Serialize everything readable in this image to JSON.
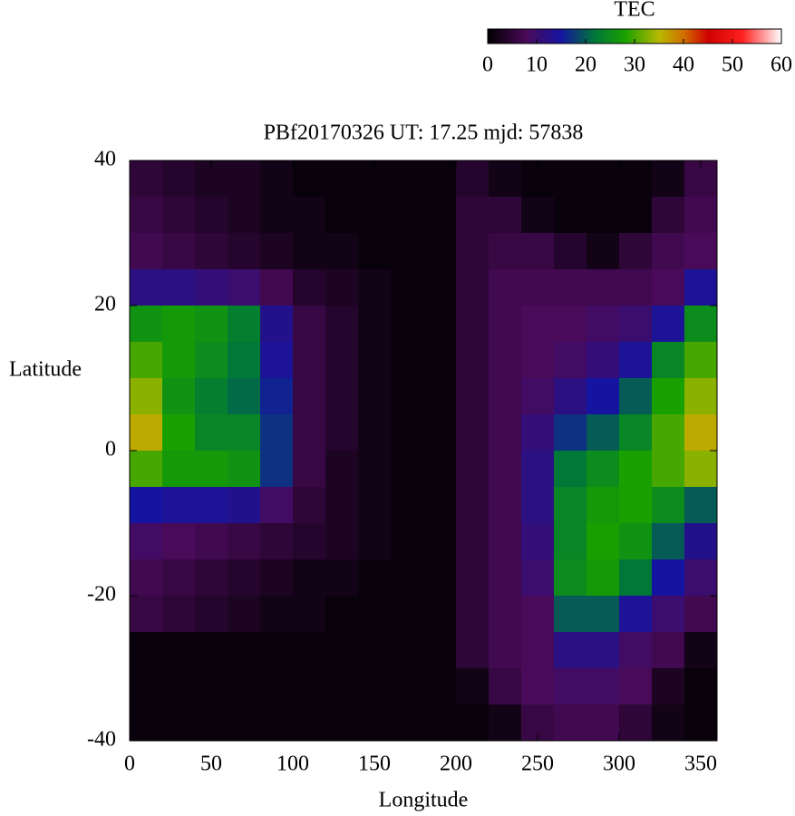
{
  "chart_data": {
    "type": "heatmap",
    "title": "PBf20170326  UT: 17.25  mjd: 57838",
    "x_label": "Longitude",
    "y_label": "Latitude",
    "x": [
      10,
      30,
      50,
      70,
      90,
      110,
      130,
      150,
      170,
      190,
      210,
      230,
      250,
      270,
      290,
      310,
      330,
      350
    ],
    "y": [
      37.5,
      32.5,
      27.5,
      22.5,
      17.5,
      12.5,
      7.5,
      2.5,
      -2.5,
      -7.5,
      -12.5,
      -17.5,
      -22.5,
      -27.5,
      -32.5,
      -37.5
    ],
    "values": [
      [
        5,
        4,
        3,
        3,
        2,
        1,
        1,
        1,
        1,
        1,
        4,
        2,
        1,
        1,
        1,
        1,
        2,
        6
      ],
      [
        6,
        5,
        4,
        3,
        2,
        2,
        1,
        1,
        1,
        1,
        5,
        5,
        2,
        1,
        1,
        1,
        5,
        7
      ],
      [
        7,
        6,
        5,
        4,
        3,
        2,
        2,
        1,
        1,
        1,
        5,
        6,
        6,
        4,
        2,
        5,
        7,
        8
      ],
      [
        12,
        12,
        11,
        10,
        7,
        4,
        3,
        2,
        1,
        1,
        5,
        7,
        7,
        7,
        7,
        7,
        8,
        14
      ],
      [
        26,
        27,
        26,
        23,
        13,
        6,
        4,
        2,
        1,
        1,
        5,
        7,
        8,
        8,
        9,
        10,
        14,
        25
      ],
      [
        30,
        27,
        25,
        22,
        14,
        6,
        4,
        2,
        1,
        1,
        5,
        7,
        8,
        9,
        11,
        14,
        24,
        30
      ],
      [
        33,
        26,
        23,
        21,
        16,
        6,
        4,
        2,
        1,
        1,
        5,
        7,
        9,
        12,
        15,
        20,
        28,
        33
      ],
      [
        36,
        28,
        24,
        24,
        17,
        6,
        4,
        2,
        1,
        1,
        5,
        7,
        11,
        17,
        20,
        24,
        30,
        36
      ],
      [
        30,
        27,
        27,
        26,
        17,
        6,
        3,
        2,
        1,
        1,
        5,
        7,
        12,
        22,
        25,
        28,
        30,
        33
      ],
      [
        15,
        14,
        14,
        13,
        9,
        5,
        3,
        2,
        1,
        1,
        5,
        7,
        12,
        24,
        27,
        28,
        25,
        20
      ],
      [
        9,
        8,
        7,
        6,
        5,
        4,
        3,
        2,
        1,
        1,
        5,
        7,
        11,
        24,
        28,
        26,
        20,
        13
      ],
      [
        7,
        6,
        5,
        4,
        3,
        2,
        2,
        1,
        1,
        1,
        5,
        7,
        10,
        25,
        27,
        22,
        15,
        10
      ],
      [
        6,
        5,
        4,
        3,
        2,
        2,
        1,
        1,
        1,
        1,
        5,
        7,
        8,
        20,
        20,
        14,
        10,
        7
      ],
      [
        1,
        1,
        1,
        1,
        1,
        1,
        1,
        1,
        1,
        1,
        5,
        7,
        8,
        12,
        12,
        9,
        7,
        2
      ],
      [
        1,
        1,
        1,
        1,
        1,
        1,
        1,
        1,
        1,
        1,
        2,
        6,
        8,
        9,
        9,
        8,
        3,
        1
      ],
      [
        1,
        1,
        1,
        1,
        1,
        1,
        1,
        1,
        1,
        1,
        1,
        2,
        6,
        7,
        7,
        5,
        2,
        1
      ]
    ],
    "xlim": [
      0,
      360
    ],
    "xticks": [
      0,
      50,
      100,
      150,
      200,
      250,
      300,
      350
    ],
    "ylim": [
      -40,
      40
    ],
    "yticks": [
      -40,
      -20,
      0,
      20,
      40
    ],
    "colorbar": {
      "title": "TEC",
      "lim": [
        0,
        60
      ],
      "ticks": [
        0,
        10,
        20,
        30,
        40,
        50,
        60
      ]
    },
    "colormap": [
      {
        "value": 0,
        "color": "#000000"
      },
      {
        "value": 8,
        "color": "#4a0a5a"
      },
      {
        "value": 15,
        "color": "#1414a0"
      },
      {
        "value": 22,
        "color": "#007838"
      },
      {
        "value": 28,
        "color": "#18a000"
      },
      {
        "value": 35,
        "color": "#b8b800"
      },
      {
        "value": 40,
        "color": "#d07000"
      },
      {
        "value": 45,
        "color": "#d00000"
      },
      {
        "value": 52,
        "color": "#ff2020"
      },
      {
        "value": 60,
        "color": "#ffffff"
      }
    ]
  }
}
